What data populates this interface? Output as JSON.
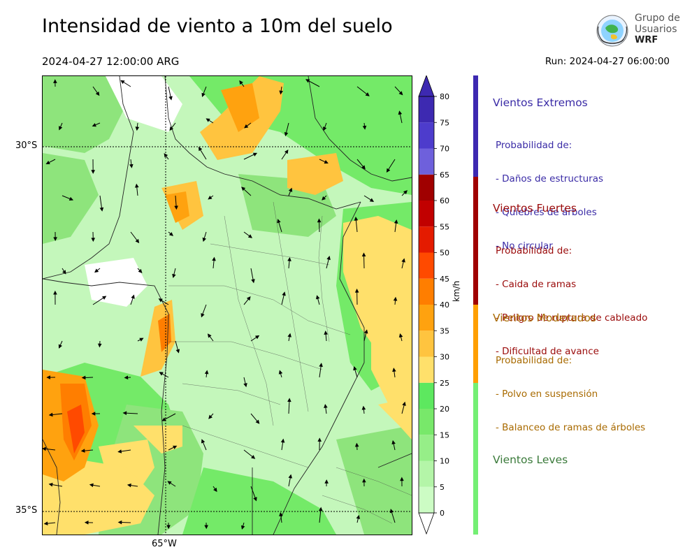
{
  "header": {
    "title": "Intensidad de viento a 10m del suelo",
    "valid_time": "2024-04-27 12:00:00 ARG",
    "run_time": "Run: 2024-04-27 06:00:00",
    "logo_line1": "Grupo de",
    "logo_line2": "Usuarios",
    "logo_line3": "WRF"
  },
  "map": {
    "lat_labels": [
      "30°S",
      "35°S"
    ],
    "lon_labels": [
      "65°W"
    ]
  },
  "chart_data": {
    "type": "heatmap",
    "title": "Intensidad de viento a 10m del suelo",
    "colorbar": {
      "unit": "km/h",
      "levels": [
        0,
        5,
        10,
        15,
        20,
        25,
        30,
        35,
        40,
        45,
        50,
        55,
        60,
        65,
        70,
        75,
        80
      ],
      "colors": [
        "#ffffff",
        "#ccfcc4",
        "#b4f5a8",
        "#96ee88",
        "#78e86a",
        "#5de85f",
        "#ffe06b",
        "#ffc43f",
        "#ffa20f",
        "#ff7e00",
        "#ff4a00",
        "#e41b00",
        "#c10000",
        "#a00000",
        "#6e60dc",
        "#4d3ccc",
        "#3d29b1"
      ],
      "extend": "both"
    },
    "categories": [
      {
        "name": "Vientos Extremos",
        "color": "#3d29b1",
        "range": [
          65,
          80
        ],
        "lines": [
          "Probabilidad de:",
          "- Daños de estructuras",
          "- Quiebres de árboles",
          "- No circular"
        ]
      },
      {
        "name": "Vientos Fuertes",
        "color": "#a00000",
        "range": [
          40,
          65
        ],
        "lines": [
          "Probabilidad de:",
          "- Caida de ramas",
          "- Peligro de ruptura de cableado",
          "- Dificultad de avance"
        ]
      },
      {
        "name": "Vientos Moderados",
        "color": "#ff9f00",
        "range": [
          25,
          40
        ],
        "lines": [
          "Probabilidad de:",
          "- Polvo en suspensión",
          "- Balanceo de ramas de árboles"
        ]
      },
      {
        "name": "Vientos Leves",
        "color": "#74ef74",
        "range": [
          0,
          25
        ],
        "lines": []
      }
    ],
    "text_colors": {
      "Vientos Extremos": "#3a2ba6",
      "Vientos Fuertes": "#9a0a0a",
      "Vientos Moderados": "#a86a00",
      "Vientos Leves": "#3a7a3a"
    }
  }
}
